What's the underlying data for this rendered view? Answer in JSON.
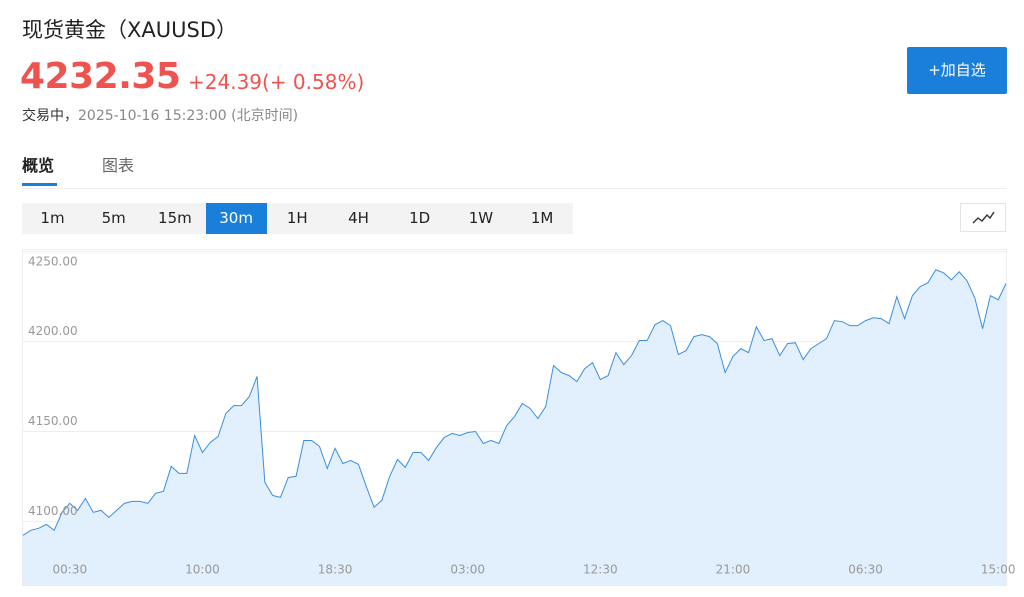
{
  "header": {
    "title": "现货黄金（XAUUSD）",
    "price": "4232.35",
    "change": "+24.39",
    "change_pct": "(+ 0.58%)",
    "status": "交易中，",
    "timestamp": "2025-10-16 15:23:00 (北京时间)",
    "watchlist_button": "+加自选"
  },
  "tabs": [
    "概览",
    "图表"
  ],
  "active_tab": 0,
  "intervals": [
    "1m",
    "5m",
    "15m",
    "30m",
    "1H",
    "4H",
    "1D",
    "1W",
    "1M"
  ],
  "active_interval": 3,
  "chart_data": {
    "type": "area",
    "color": "#3a8ee0",
    "fill": "#e2effc",
    "grid": true,
    "ylim": [
      4064,
      4251
    ],
    "yticks": [
      {
        "value": 4100,
        "label": "4100.00"
      },
      {
        "value": 4150,
        "label": "4150.00"
      },
      {
        "value": 4200,
        "label": "4200.00"
      },
      {
        "value": 4250,
        "label": "4250.00"
      }
    ],
    "categories": [
      null,
      null,
      null,
      null,
      null,
      null,
      "00:30",
      null,
      null,
      null,
      null,
      null,
      null,
      null,
      null,
      null,
      null,
      null,
      null,
      null,
      null,
      null,
      null,
      "10:00",
      null,
      null,
      null,
      null,
      null,
      null,
      null,
      null,
      null,
      null,
      null,
      null,
      null,
      null,
      null,
      null,
      "18:30",
      null,
      null,
      null,
      null,
      null,
      null,
      null,
      null,
      null,
      null,
      null,
      null,
      null,
      null,
      null,
      null,
      "03:00",
      null,
      null,
      null,
      null,
      null,
      null,
      null,
      null,
      null,
      null,
      null,
      null,
      null,
      null,
      null,
      null,
      "12:30",
      null,
      null,
      null,
      null,
      null,
      null,
      null,
      null,
      null,
      null,
      null,
      null,
      null,
      null,
      null,
      null,
      "21:00",
      null,
      null,
      null,
      null,
      null,
      null,
      null,
      null,
      null,
      null,
      null,
      null,
      null,
      null,
      null,
      null,
      "06:30",
      null,
      null,
      null,
      null,
      null,
      null,
      null,
      null,
      null,
      null,
      null,
      null,
      null,
      null,
      null,
      null,
      "15:00",
      null
    ],
    "values": [
      4092.2,
      4095.0,
      4096.1,
      4098.3,
      4095.0,
      4105.0,
      4110.0,
      4106.1,
      4112.8,
      4105.0,
      4106.1,
      4102.2,
      4106.1,
      4110.0,
      4111.1,
      4111.1,
      4110.0,
      4115.6,
      4116.7,
      4130.6,
      4126.7,
      4126.7,
      4147.8,
      4138.3,
      4143.9,
      4147.2,
      4160.0,
      4164.4,
      4164.4,
      4169.4,
      4180.6,
      4121.7,
      4114.4,
      4113.3,
      4124.4,
      4125.0,
      4145.0,
      4145.0,
      4141.7,
      4129.4,
      4140.6,
      4132.2,
      4133.9,
      4131.7,
      4119.4,
      4107.8,
      4111.7,
      4125.0,
      4134.4,
      4130.0,
      4138.3,
      4138.3,
      4133.9,
      4141.1,
      4146.7,
      4148.9,
      4147.8,
      4149.4,
      4150.0,
      4143.3,
      4145.0,
      4143.3,
      4153.3,
      4158.3,
      4165.6,
      4162.8,
      4157.2,
      4163.9,
      4186.7,
      4182.8,
      4181.1,
      4177.8,
      4185.0,
      4188.3,
      4178.9,
      4181.1,
      4193.9,
      4187.2,
      4192.2,
      4200.6,
      4200.6,
      4209.4,
      4211.7,
      4208.9,
      4192.8,
      4195.0,
      4202.8,
      4203.9,
      4202.8,
      4198.9,
      4182.8,
      4191.7,
      4196.1,
      4193.9,
      4208.3,
      4200.6,
      4201.7,
      4192.2,
      4198.9,
      4199.4,
      4190.0,
      4196.1,
      4198.9,
      4201.7,
      4211.7,
      4211.1,
      4208.9,
      4208.9,
      4211.7,
      4213.3,
      4212.8,
      4210.0,
      4225.0,
      4212.8,
      4225.6,
      4230.6,
      4232.8,
      4240.0,
      4238.3,
      4234.4,
      4238.9,
      4233.9,
      4224.4,
      4207.2,
      4225.6,
      4223.3,
      4232.35
    ]
  }
}
